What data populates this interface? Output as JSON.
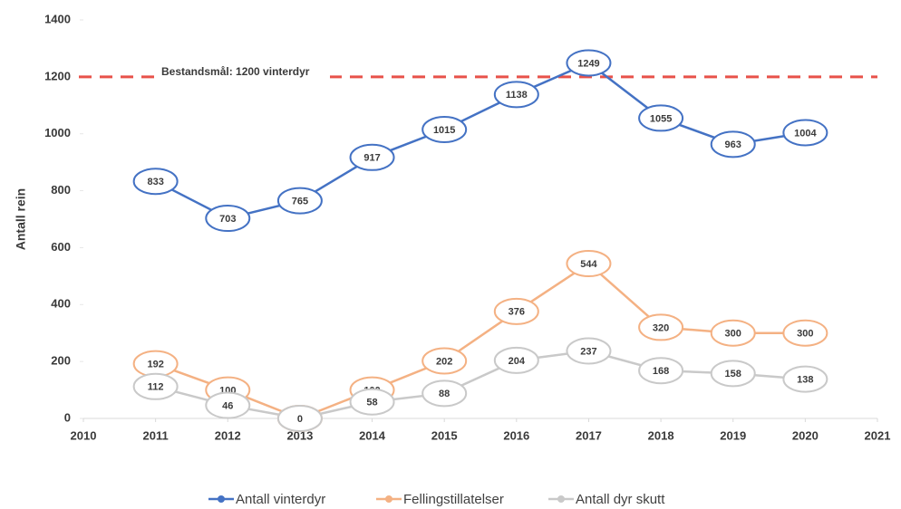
{
  "chart_data": {
    "type": "line",
    "y_label": "Antall rein",
    "x": [
      2011,
      2012,
      2013,
      2014,
      2015,
      2016,
      2017,
      2018,
      2019,
      2020
    ],
    "xlim": [
      2010,
      2021
    ],
    "xticks": [
      2010,
      2011,
      2012,
      2013,
      2014,
      2015,
      2016,
      2017,
      2018,
      2019,
      2020,
      2021
    ],
    "ylim": [
      0,
      1400
    ],
    "yticks": [
      0,
      200,
      400,
      600,
      800,
      1000,
      1200,
      1400
    ],
    "reference_line": {
      "value": 1200,
      "label": "Bestandsmål: 1200 vinterdyr",
      "color": "#e8524a"
    },
    "legend": "bottom",
    "series": [
      {
        "name": "Antall vinterdyr",
        "color": "#4472c4",
        "values": [
          833,
          703,
          765,
          917,
          1015,
          1138,
          1249,
          1055,
          963,
          1004
        ]
      },
      {
        "name": "Fellingstillatelser",
        "color": "#f4b183",
        "values": [
          192,
          100,
          0,
          100,
          202,
          376,
          544,
          320,
          300,
          300
        ]
      },
      {
        "name": "Antall dyr skutt",
        "color": "#c9c9c9",
        "values": [
          112,
          46,
          0,
          58,
          88,
          204,
          237,
          168,
          158,
          138
        ]
      }
    ]
  }
}
